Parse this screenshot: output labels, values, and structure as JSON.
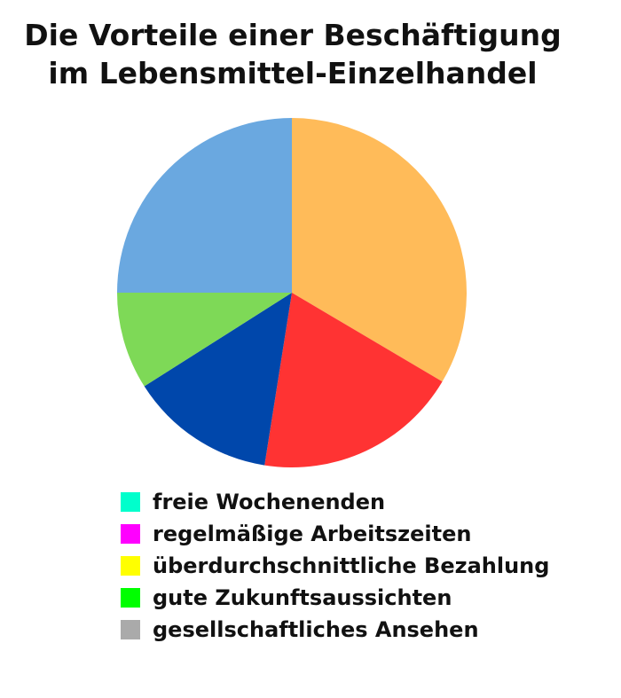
{
  "chart_data": {
    "type": "pie",
    "title_line1": "Die Vorteile einer Beschäftigung",
    "title_line2": "im Lebensmittel-Einzelhandel",
    "slices": [
      {
        "value": 33.5,
        "color": "#FFBB59"
      },
      {
        "value": 19.0,
        "color": "#FF3333"
      },
      {
        "value": 13.5,
        "color": "#0047AB"
      },
      {
        "value": 9.0,
        "color": "#7ED957"
      },
      {
        "value": 25.0,
        "color": "#6AA8E0"
      }
    ],
    "legend": [
      {
        "label": "freie Wochenenden",
        "color": "#00FFCC"
      },
      {
        "label": "regelmäßige Arbeitszeiten",
        "color": "#FF00FF"
      },
      {
        "label": "überdurchschnittliche Bezahlung",
        "color": "#FFFF00"
      },
      {
        "label": "gute Zukunftsaussichten",
        "color": "#00FF00"
      },
      {
        "label": "gesellschaftliches Ansehen",
        "color": "#AAAAAA"
      }
    ]
  }
}
